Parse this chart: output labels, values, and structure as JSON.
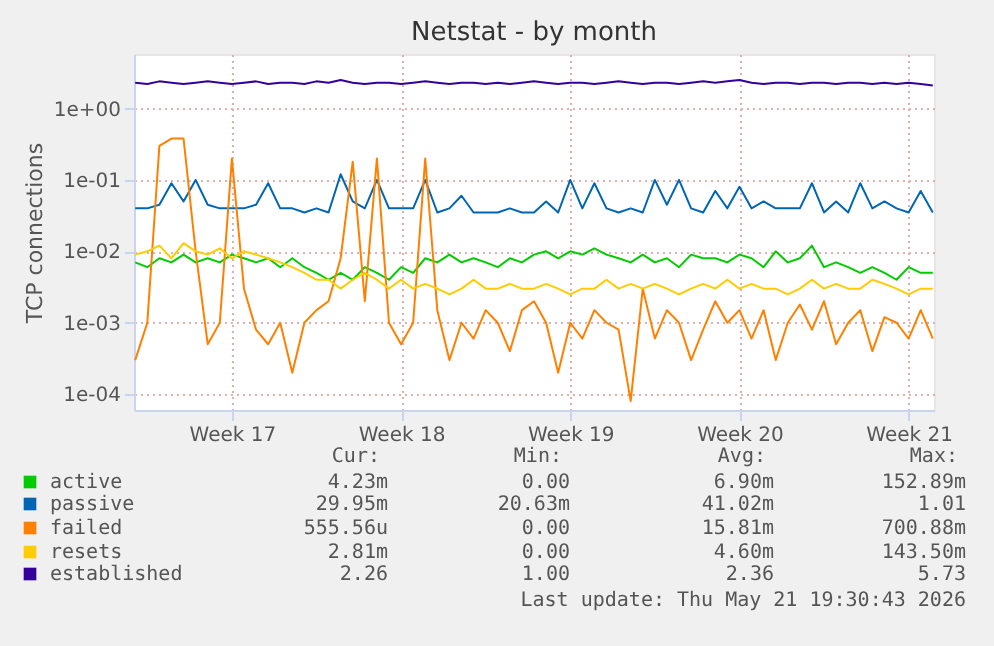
{
  "chart_data": {
    "type": "line",
    "title": "Netstat - by month",
    "ylabel": "TCP connections",
    "log": true,
    "grid": true,
    "legend": "bottom",
    "categories": [
      null,
      null,
      null,
      null,
      null,
      null,
      null,
      null,
      "Week 17",
      null,
      null,
      null,
      null,
      null,
      null,
      null,
      null,
      null,
      null,
      null,
      null,
      null,
      "Week 18",
      null,
      null,
      null,
      null,
      null,
      null,
      null,
      null,
      null,
      null,
      null,
      null,
      null,
      "Week 19",
      null,
      null,
      null,
      null,
      null,
      null,
      null,
      null,
      null,
      null,
      null,
      null,
      null,
      "Week 20",
      null,
      null,
      null,
      null,
      null,
      null,
      null,
      null,
      null,
      null,
      null,
      null,
      null,
      "Week 21",
      null,
      null
    ],
    "ylim": [
      6e-05,
      5.8
    ],
    "yticks": [
      {
        "value": 0.0001,
        "label": "1e-04"
      },
      {
        "value": 0.001,
        "label": "1e-03"
      },
      {
        "value": 0.01,
        "label": "1e-02"
      },
      {
        "value": 0.1,
        "label": "1e-01"
      },
      {
        "value": 1,
        "label": "1e+00"
      }
    ],
    "series": [
      {
        "name": "active",
        "color": "#00cc00",
        "values": [
          0.007,
          0.006,
          0.008,
          0.007,
          0.009,
          0.007,
          0.008,
          0.007,
          0.009,
          0.008,
          0.007,
          0.008,
          0.006,
          0.008,
          0.006,
          0.005,
          0.004,
          0.005,
          0.004,
          0.006,
          0.005,
          0.004,
          0.006,
          0.005,
          0.008,
          0.007,
          0.009,
          0.007,
          0.008,
          0.007,
          0.006,
          0.008,
          0.007,
          0.009,
          0.01,
          0.008,
          0.01,
          0.009,
          0.011,
          0.009,
          0.008,
          0.007,
          0.009,
          0.007,
          0.008,
          0.006,
          0.009,
          0.008,
          0.008,
          0.007,
          0.009,
          0.008,
          0.006,
          0.01,
          0.007,
          0.008,
          0.012,
          0.006,
          0.007,
          0.006,
          0.005,
          0.006,
          0.005,
          0.004,
          0.006,
          0.005,
          0.005
        ]
      },
      {
        "name": "passive",
        "color": "#0066b3",
        "values": [
          0.04,
          0.04,
          0.045,
          0.09,
          0.05,
          0.1,
          0.045,
          0.04,
          0.04,
          0.04,
          0.045,
          0.09,
          0.04,
          0.04,
          0.035,
          0.04,
          0.035,
          0.12,
          0.05,
          0.04,
          0.1,
          0.04,
          0.04,
          0.04,
          0.1,
          0.035,
          0.04,
          0.06,
          0.035,
          0.035,
          0.035,
          0.04,
          0.035,
          0.035,
          0.05,
          0.035,
          0.1,
          0.04,
          0.09,
          0.04,
          0.035,
          0.04,
          0.035,
          0.1,
          0.045,
          0.1,
          0.04,
          0.035,
          0.07,
          0.04,
          0.08,
          0.04,
          0.05,
          0.04,
          0.04,
          0.04,
          0.09,
          0.035,
          0.05,
          0.035,
          0.09,
          0.04,
          0.05,
          0.04,
          0.035,
          0.07,
          0.035
        ]
      },
      {
        "name": "failed",
        "color": "#ff8000",
        "values": [
          0.0003,
          0.001,
          0.3,
          0.38,
          0.38,
          0.01,
          0.0005,
          0.001,
          0.2,
          0.003,
          0.0008,
          0.0005,
          0.001,
          0.0002,
          0.001,
          0.0015,
          0.002,
          0.008,
          0.18,
          0.002,
          0.2,
          0.001,
          0.0005,
          0.001,
          0.2,
          0.0015,
          0.0003,
          0.001,
          0.0006,
          0.0015,
          0.001,
          0.0004,
          0.0015,
          0.002,
          0.001,
          0.0002,
          0.001,
          0.0006,
          0.0015,
          0.001,
          0.0008,
          8e-05,
          0.003,
          0.0006,
          0.0015,
          0.001,
          0.0003,
          0.0008,
          0.002,
          0.001,
          0.0015,
          0.0006,
          0.0015,
          0.0003,
          0.001,
          0.0018,
          0.0008,
          0.002,
          0.0005,
          0.001,
          0.0015,
          0.0004,
          0.0012,
          0.001,
          0.0006,
          0.0015,
          0.0006
        ]
      },
      {
        "name": "resets",
        "color": "#ffcc00",
        "values": [
          0.009,
          0.01,
          0.012,
          0.008,
          0.013,
          0.01,
          0.009,
          0.011,
          0.008,
          0.01,
          0.009,
          0.008,
          0.007,
          0.006,
          0.005,
          0.004,
          0.004,
          0.003,
          0.004,
          0.005,
          0.004,
          0.003,
          0.004,
          0.003,
          0.0035,
          0.003,
          0.0025,
          0.003,
          0.004,
          0.003,
          0.003,
          0.0035,
          0.003,
          0.003,
          0.0035,
          0.003,
          0.0025,
          0.003,
          0.003,
          0.004,
          0.003,
          0.0035,
          0.003,
          0.0035,
          0.003,
          0.0025,
          0.003,
          0.0035,
          0.003,
          0.004,
          0.003,
          0.0035,
          0.003,
          0.003,
          0.0025,
          0.003,
          0.004,
          0.003,
          0.0035,
          0.003,
          0.003,
          0.004,
          0.0035,
          0.003,
          0.0025,
          0.003,
          0.003
        ]
      },
      {
        "name": "established",
        "color": "#330099",
        "values": [
          2.3,
          2.2,
          2.4,
          2.3,
          2.2,
          2.3,
          2.4,
          2.3,
          2.2,
          2.3,
          2.4,
          2.2,
          2.3,
          2.3,
          2.2,
          2.4,
          2.3,
          2.5,
          2.3,
          2.2,
          2.3,
          2.3,
          2.2,
          2.3,
          2.4,
          2.3,
          2.2,
          2.3,
          2.3,
          2.2,
          2.3,
          2.2,
          2.3,
          2.4,
          2.3,
          2.2,
          2.3,
          2.3,
          2.2,
          2.3,
          2.4,
          2.3,
          2.2,
          2.3,
          2.3,
          2.2,
          2.3,
          2.4,
          2.3,
          2.4,
          2.5,
          2.3,
          2.2,
          2.3,
          2.3,
          2.2,
          2.3,
          2.3,
          2.2,
          2.3,
          2.3,
          2.2,
          2.3,
          2.2,
          2.3,
          2.2,
          2.1
        ]
      }
    ],
    "annotations": [
      "Cur:",
      "Min:",
      "Avg:",
      "Max:",
      "4.23m",
      "0.00",
      "6.90m",
      "152.89m",
      "29.95m",
      "20.63m",
      "41.02m",
      "1.01",
      "555.56u",
      "0.00",
      "15.81m",
      "700.88m",
      "2.81m",
      "0.00",
      "4.60m",
      "143.50m",
      "2.26",
      "1.00",
      "2.36",
      "5.73",
      "Last update: Thu May 21 19:30:43 2026"
    ]
  }
}
